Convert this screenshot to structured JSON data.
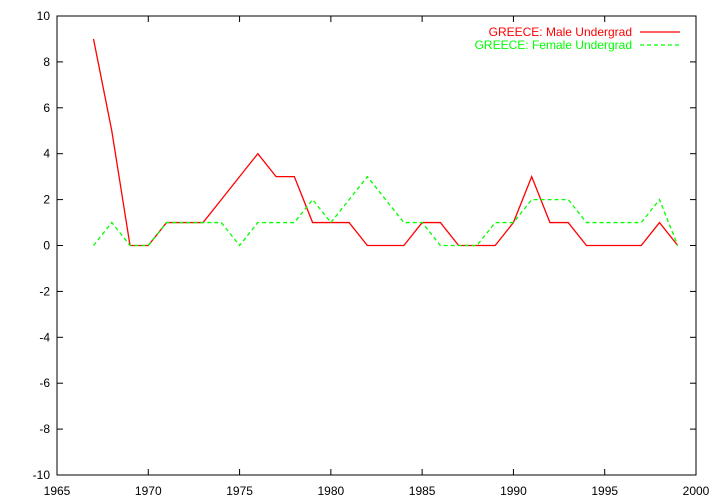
{
  "chart_data": {
    "type": "line",
    "title": "",
    "xlabel": "",
    "ylabel": "",
    "xlim": [
      1965,
      2000
    ],
    "ylim": [
      -10,
      10
    ],
    "x_ticks": [
      1965,
      1970,
      1975,
      1980,
      1985,
      1990,
      1995,
      2000
    ],
    "y_ticks": [
      -10,
      -8,
      -6,
      -4,
      -2,
      0,
      2,
      4,
      6,
      8,
      10
    ],
    "grid": false,
    "legend_position": "top-right",
    "x": [
      1967,
      1968,
      1969,
      1970,
      1971,
      1972,
      1973,
      1974,
      1975,
      1976,
      1977,
      1978,
      1979,
      1980,
      1981,
      1982,
      1983,
      1984,
      1985,
      1986,
      1987,
      1988,
      1989,
      1990,
      1991,
      1992,
      1993,
      1994,
      1995,
      1996,
      1997,
      1998,
      1999
    ],
    "series": [
      {
        "name": "GREECE: Male Undergrad",
        "color": "#ff0000",
        "dash": "solid",
        "values": [
          9,
          5,
          0,
          0,
          1,
          1,
          1,
          2,
          3,
          4,
          3,
          3,
          1,
          1,
          1,
          0,
          0,
          0,
          1,
          1,
          0,
          0,
          0,
          1,
          3,
          1,
          1,
          0,
          0,
          0,
          0,
          1,
          0
        ]
      },
      {
        "name": "GREECE: Female Undergrad",
        "color": "#00ff00",
        "dash": "dashed",
        "values": [
          0,
          1,
          0,
          0,
          1,
          1,
          1,
          1,
          0,
          1,
          1,
          1,
          2,
          1,
          2,
          3,
          2,
          1,
          1,
          0,
          0,
          0,
          1,
          1,
          2,
          2,
          2,
          1,
          1,
          1,
          1,
          2,
          0
        ]
      }
    ]
  }
}
